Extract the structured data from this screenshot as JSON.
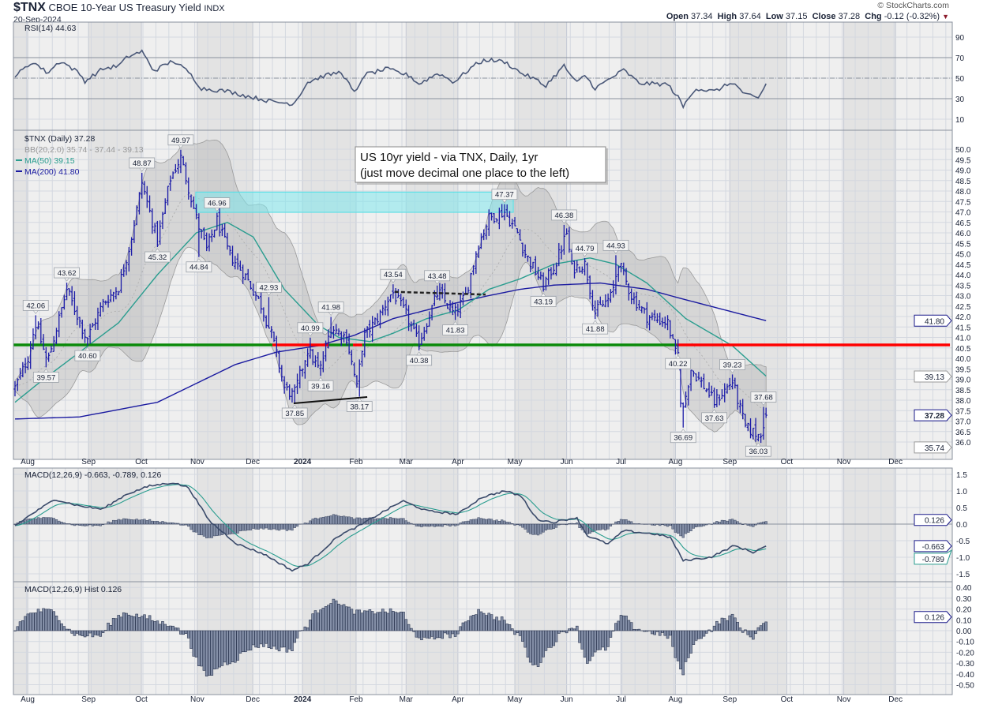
{
  "header": {
    "symbol": "$TNX",
    "name": "CBOE 10-Year US Treasury Yield",
    "exchange": "INDX",
    "date": "20-Sep-2024",
    "brand": "© StockCharts.com",
    "open_label": "Open",
    "open": "37.34",
    "high_label": "High",
    "high": "37.64",
    "low_label": "Low",
    "low": "37.15",
    "close_label": "Close",
    "close": "37.28",
    "chg_label": "Chg",
    "chg": "-0.12 (-0.32%)",
    "chg_direction": "down",
    "chg_color": "#8b1a2b"
  },
  "legends": {
    "rsi": "RSI(14) 44.63",
    "price": "$TNX (Daily) 37.28",
    "bb": "BB(20,2.0) 35.74 - 37.44 - 39.13",
    "ma50": "MA(50) 39.15",
    "ma200": "MA(200) 41.80",
    "macd": "MACD(12,26,9) -0.663, -0.789, 0.126",
    "hist": "MACD(12,26,9) Hist 0.126"
  },
  "annotation": {
    "line1": "US 10yr yield - via TNX, Daily, 1yr",
    "line2": "(just move decimal one place to the left)"
  },
  "colors": {
    "bars": "#1c1ca8",
    "ma50": "#2a9d8f",
    "ma200": "#1a1aa0",
    "rsi": "#4a5878",
    "support_green": "#0a8a0a",
    "resistance_red": "#ff0000",
    "zone": "#7fe8ec"
  },
  "chart_data": {
    "type": "ohlc",
    "title": "$TNX CBOE 10-Year US Treasury Yield",
    "x_unit": "trading day index (0 = late Jul 2023, 290 = 20-Sep-2024)",
    "x_ticks": [
      {
        "label": "Aug",
        "day": 4.9
      },
      {
        "label": "Sep",
        "day": 28.4
      },
      {
        "label": "Oct",
        "day": 48.8
      },
      {
        "label": "Nov",
        "day": 70.4
      },
      {
        "label": "Dec",
        "day": 91.8
      },
      {
        "label": "2024",
        "day": 111
      },
      {
        "label": "Feb",
        "day": 131.7
      },
      {
        "label": "Mar",
        "day": 151
      },
      {
        "label": "Apr",
        "day": 171
      },
      {
        "label": "May",
        "day": 193
      },
      {
        "label": "Jun",
        "day": 213
      },
      {
        "label": "Jul",
        "day": 234
      },
      {
        "label": "Aug",
        "day": 255
      },
      {
        "label": "Sep",
        "day": 276
      },
      {
        "label": "Oct",
        "day": 298
      },
      {
        "label": "Nov",
        "day": 320
      },
      {
        "label": "Dec",
        "day": 340
      }
    ],
    "price": {
      "ylim": [
        35.6,
        50.9
      ],
      "yticks": [
        "36.0",
        "36.5",
        "37.0",
        "37.5",
        "38.0",
        "38.5",
        "39.0",
        "39.5",
        "40.0",
        "40.5",
        "41.0",
        "41.5",
        "42.0",
        "42.5",
        "43.0",
        "43.5",
        "44.0",
        "44.5",
        "45.0",
        "45.5",
        "46.0",
        "46.5",
        "47.0",
        "47.5",
        "48.0",
        "48.5",
        "49.0",
        "49.5",
        "50.0"
      ],
      "close_path": [
        [
          0,
          38.6
        ],
        [
          4.9,
          40.0
        ],
        [
          7.9,
          41.7
        ],
        [
          12.5,
          39.8
        ],
        [
          20,
          43.3
        ],
        [
          27.7,
          40.9
        ],
        [
          33.8,
          42.6
        ],
        [
          40,
          43.4
        ],
        [
          44.5,
          45.5
        ],
        [
          49,
          48.4
        ],
        [
          55,
          45.6
        ],
        [
          60,
          48.6
        ],
        [
          64,
          49.6
        ],
        [
          70.4,
          46.5
        ],
        [
          74,
          45.2
        ],
        [
          78,
          46.6
        ],
        [
          82.6,
          45.0
        ],
        [
          88.7,
          44.0
        ],
        [
          94.8,
          42.6
        ],
        [
          99.4,
          41.0
        ],
        [
          104,
          38.6
        ],
        [
          107.6,
          38.2
        ],
        [
          113,
          40.4
        ],
        [
          117.7,
          39.4
        ],
        [
          122,
          41.5
        ],
        [
          128,
          41.0
        ],
        [
          132,
          38.6
        ],
        [
          134.5,
          41.0
        ],
        [
          140.5,
          42.0
        ],
        [
          145.7,
          43.2
        ],
        [
          151,
          42.1
        ],
        [
          155.8,
          40.7
        ],
        [
          163.4,
          43.2
        ],
        [
          169.5,
          42.1
        ],
        [
          174,
          43.0
        ],
        [
          178.7,
          45.4
        ],
        [
          183,
          46.7
        ],
        [
          189,
          47.0
        ],
        [
          194,
          46.0
        ],
        [
          197,
          45.0
        ],
        [
          204,
          43.5
        ],
        [
          209,
          44.6
        ],
        [
          213,
          46.0
        ],
        [
          215,
          44.3
        ],
        [
          220,
          44.5
        ],
        [
          224,
          42.2
        ],
        [
          230.5,
          43.0
        ],
        [
          233,
          44.6
        ],
        [
          238,
          43.0
        ],
        [
          244,
          42.0
        ],
        [
          252,
          41.7
        ],
        [
          255.5,
          40.0
        ],
        [
          257.6,
          37.3
        ],
        [
          261,
          39.5
        ],
        [
          267,
          38.5
        ],
        [
          270,
          37.9
        ],
        [
          277,
          38.9
        ],
        [
          282,
          36.7
        ],
        [
          287.5,
          36.3
        ],
        [
          290,
          37.28
        ]
      ],
      "ma50": [
        [
          0,
          37.9
        ],
        [
          10,
          38.9
        ],
        [
          25,
          40.3
        ],
        [
          40,
          41.7
        ],
        [
          55,
          44.0
        ],
        [
          70,
          46.0
        ],
        [
          82,
          46.5
        ],
        [
          92,
          45.8
        ],
        [
          104,
          43.3
        ],
        [
          117,
          41.6
        ],
        [
          125,
          41.0
        ],
        [
          137,
          40.8
        ],
        [
          146,
          41.2
        ],
        [
          159,
          41.9
        ],
        [
          171,
          42.3
        ],
        [
          183,
          43.3
        ],
        [
          195,
          43.8
        ],
        [
          208,
          44.5
        ],
        [
          222,
          44.8
        ],
        [
          232,
          44.5
        ],
        [
          244,
          43.6
        ],
        [
          259,
          41.9
        ],
        [
          277,
          40.6
        ],
        [
          290,
          39.15
        ]
      ],
      "ma200": [
        [
          0,
          37.1
        ],
        [
          25,
          37.2
        ],
        [
          55,
          37.9
        ],
        [
          85,
          39.7
        ],
        [
          101,
          40.3
        ],
        [
          117,
          40.6
        ],
        [
          131,
          41.1
        ],
        [
          146,
          41.9
        ],
        [
          165,
          42.5
        ],
        [
          183,
          43.0
        ],
        [
          195,
          43.3
        ],
        [
          208,
          43.5
        ],
        [
          226,
          43.6
        ],
        [
          244,
          43.3
        ],
        [
          259,
          42.8
        ],
        [
          290,
          41.8
        ]
      ],
      "bb_period": 20,
      "bb_std": 2.0,
      "last_tags": [
        {
          "text": "41.80",
          "value": 41.8,
          "style": "blue"
        },
        {
          "text": "39.13",
          "value": 39.13,
          "style": "gray"
        },
        {
          "text": "37.28",
          "value": 37.28,
          "style": "bold"
        },
        {
          "text": "35.74",
          "value": 35.74,
          "style": "gray"
        }
      ],
      "point_labels": [
        {
          "text": "42.06",
          "day": 8,
          "value": 42.06,
          "pos": "above"
        },
        {
          "text": "39.57",
          "day": 12,
          "value": 39.57,
          "pos": "below"
        },
        {
          "text": "43.62",
          "day": 20,
          "value": 43.62,
          "pos": "above"
        },
        {
          "text": "40.60",
          "day": 28,
          "value": 40.6,
          "pos": "below"
        },
        {
          "text": "48.87",
          "day": 49,
          "value": 48.87,
          "pos": "above"
        },
        {
          "text": "45.32",
          "day": 55,
          "value": 45.32,
          "pos": "below"
        },
        {
          "text": "49.97",
          "day": 64,
          "value": 49.97,
          "pos": "above"
        },
        {
          "text": "44.84",
          "day": 71,
          "value": 44.84,
          "pos": "below"
        },
        {
          "text": "46.96",
          "day": 78,
          "value": 46.96,
          "pos": "above"
        },
        {
          "text": "42.93",
          "day": 98,
          "value": 42.93,
          "pos": "above"
        },
        {
          "text": "37.85",
          "day": 108,
          "value": 37.85,
          "pos": "below"
        },
        {
          "text": "40.99",
          "day": 114,
          "value": 40.99,
          "pos": "above"
        },
        {
          "text": "39.16",
          "day": 118,
          "value": 39.16,
          "pos": "below"
        },
        {
          "text": "41.98",
          "day": 122,
          "value": 41.98,
          "pos": "above"
        },
        {
          "text": "38.17",
          "day": 133,
          "value": 38.17,
          "pos": "below"
        },
        {
          "text": "43.54",
          "day": 146,
          "value": 43.54,
          "pos": "above"
        },
        {
          "text": "40.38",
          "day": 156,
          "value": 40.38,
          "pos": "below"
        },
        {
          "text": "43.48",
          "day": 163,
          "value": 43.48,
          "pos": "above"
        },
        {
          "text": "41.83",
          "day": 170,
          "value": 41.83,
          "pos": "below"
        },
        {
          "text": "47.37",
          "day": 189,
          "value": 47.37,
          "pos": "above"
        },
        {
          "text": "43.19",
          "day": 204,
          "value": 43.19,
          "pos": "below"
        },
        {
          "text": "46.38",
          "day": 212,
          "value": 46.38,
          "pos": "above"
        },
        {
          "text": "44.79",
          "day": 220,
          "value": 44.79,
          "pos": "above"
        },
        {
          "text": "41.88",
          "day": 224,
          "value": 41.88,
          "pos": "below"
        },
        {
          "text": "44.93",
          "day": 232,
          "value": 44.93,
          "pos": "above"
        },
        {
          "text": "40.22",
          "day": 256,
          "value": 40.22,
          "pos": "below"
        },
        {
          "text": "36.69",
          "day": 258,
          "value": 36.69,
          "pos": "below"
        },
        {
          "text": "37.63",
          "day": 270,
          "value": 37.63,
          "pos": "below"
        },
        {
          "text": "39.23",
          "day": 277,
          "value": 39.23,
          "pos": "above"
        },
        {
          "text": "36.03",
          "day": 287,
          "value": 36.03,
          "pos": "below"
        },
        {
          "text": "37.68",
          "day": 289,
          "value": 37.68,
          "pos": "above"
        }
      ],
      "drawings": {
        "level_value": 40.64,
        "level_segments": [
          [
            -1,
            99.4,
            "green"
          ],
          [
            99.4,
            121.3,
            "red"
          ],
          [
            121.3,
            130.5,
            "green"
          ],
          [
            130.5,
            134.1,
            "red"
          ],
          [
            134.1,
            255.5,
            "green"
          ],
          [
            255.5,
            361,
            "red"
          ]
        ],
        "zone": {
          "from_day": 69.8,
          "to_day": 192.4,
          "low": 46.98,
          "high": 47.95
        },
        "dashed_trend": [
          [
            146.6,
            43.18
          ],
          [
            181.7,
            43.05
          ]
        ],
        "solid_trend": [
          [
            107.6,
            37.85
          ],
          [
            136,
            38.15
          ]
        ]
      }
    },
    "rsi": {
      "ylim": [
        0,
        100
      ],
      "yticks": [
        "90",
        "70",
        "50",
        "30",
        "10"
      ],
      "last": "44.63",
      "path": [
        [
          0,
          52
        ],
        [
          7,
          66
        ],
        [
          12.5,
          55
        ],
        [
          17.6,
          67
        ],
        [
          24.7,
          55
        ],
        [
          27,
          47
        ],
        [
          33.8,
          59
        ],
        [
          40,
          62
        ],
        [
          43.6,
          71
        ],
        [
          49,
          76
        ],
        [
          53.6,
          57
        ],
        [
          61,
          67
        ],
        [
          67,
          56
        ],
        [
          72,
          40
        ],
        [
          82.6,
          37
        ],
        [
          88.7,
          33
        ],
        [
          99.4,
          27
        ],
        [
          107.6,
          25
        ],
        [
          113,
          46
        ],
        [
          119,
          52
        ],
        [
          126,
          56
        ],
        [
          131.4,
          34
        ],
        [
          134.5,
          53
        ],
        [
          143.6,
          59
        ],
        [
          152.7,
          52
        ],
        [
          155.8,
          44
        ],
        [
          163.4,
          55
        ],
        [
          169.5,
          46
        ],
        [
          177,
          62
        ],
        [
          181.7,
          68
        ],
        [
          189,
          66
        ],
        [
          195.4,
          55
        ],
        [
          201.5,
          48
        ],
        [
          204.6,
          42
        ],
        [
          212,
          62
        ],
        [
          216.8,
          45
        ],
        [
          220,
          53
        ],
        [
          224,
          40
        ],
        [
          235,
          58
        ],
        [
          241,
          45
        ],
        [
          252,
          44
        ],
        [
          256.4,
          30
        ],
        [
          258,
          22
        ],
        [
          262.5,
          40
        ],
        [
          270,
          37
        ],
        [
          277,
          46
        ],
        [
          282,
          34
        ],
        [
          287,
          30
        ],
        [
          290,
          44.63
        ]
      ]
    },
    "macd": {
      "yticks": [
        "1.5",
        "1.0",
        "0.5",
        "0.0",
        "-0.5",
        "-1.0",
        "-1.5"
      ],
      "macd_path": [
        [
          0,
          -0.05
        ],
        [
          6.4,
          0.3
        ],
        [
          15.5,
          0.75
        ],
        [
          24.7,
          0.55
        ],
        [
          33.8,
          0.45
        ],
        [
          43,
          0.9
        ],
        [
          52,
          1.15
        ],
        [
          61,
          1.25
        ],
        [
          67,
          1.1
        ],
        [
          75,
          0.1
        ],
        [
          85.7,
          -0.6
        ],
        [
          96,
          -0.9
        ],
        [
          107,
          -1.4
        ],
        [
          113,
          -1.2
        ],
        [
          125,
          -0.35
        ],
        [
          133,
          -0.05
        ],
        [
          140.5,
          0.3
        ],
        [
          149.7,
          0.7
        ],
        [
          159,
          0.4
        ],
        [
          171,
          0.3
        ],
        [
          180,
          0.8
        ],
        [
          189,
          1.0
        ],
        [
          195.4,
          0.85
        ],
        [
          201.5,
          0.15
        ],
        [
          207.6,
          0.05
        ],
        [
          216.8,
          0.2
        ],
        [
          221,
          -0.35
        ],
        [
          229,
          -0.6
        ],
        [
          235,
          -0.2
        ],
        [
          247,
          -0.3
        ],
        [
          253,
          -0.4
        ],
        [
          258,
          -1.1
        ],
        [
          268.6,
          -1.0
        ],
        [
          277.7,
          -0.65
        ],
        [
          285,
          -0.85
        ],
        [
          290,
          -0.663
        ]
      ],
      "signal_period": 9,
      "last_tags": [
        {
          "text": "0.126",
          "value": 0.126,
          "style": "blue"
        },
        {
          "text": "-0.663",
          "value": -0.663,
          "style": "blue"
        },
        {
          "text": "-0.789",
          "value": -0.789,
          "style": "teal"
        }
      ]
    },
    "hist": {
      "yticks": [
        "0.40",
        "0.30",
        "0.20",
        "0.10",
        "0.00",
        "-0.10",
        "-0.20",
        "-0.30",
        "-0.40",
        "-0.50"
      ],
      "last_tags": [
        {
          "text": "0.126",
          "value": 0.126,
          "style": "blue"
        }
      ]
    }
  }
}
